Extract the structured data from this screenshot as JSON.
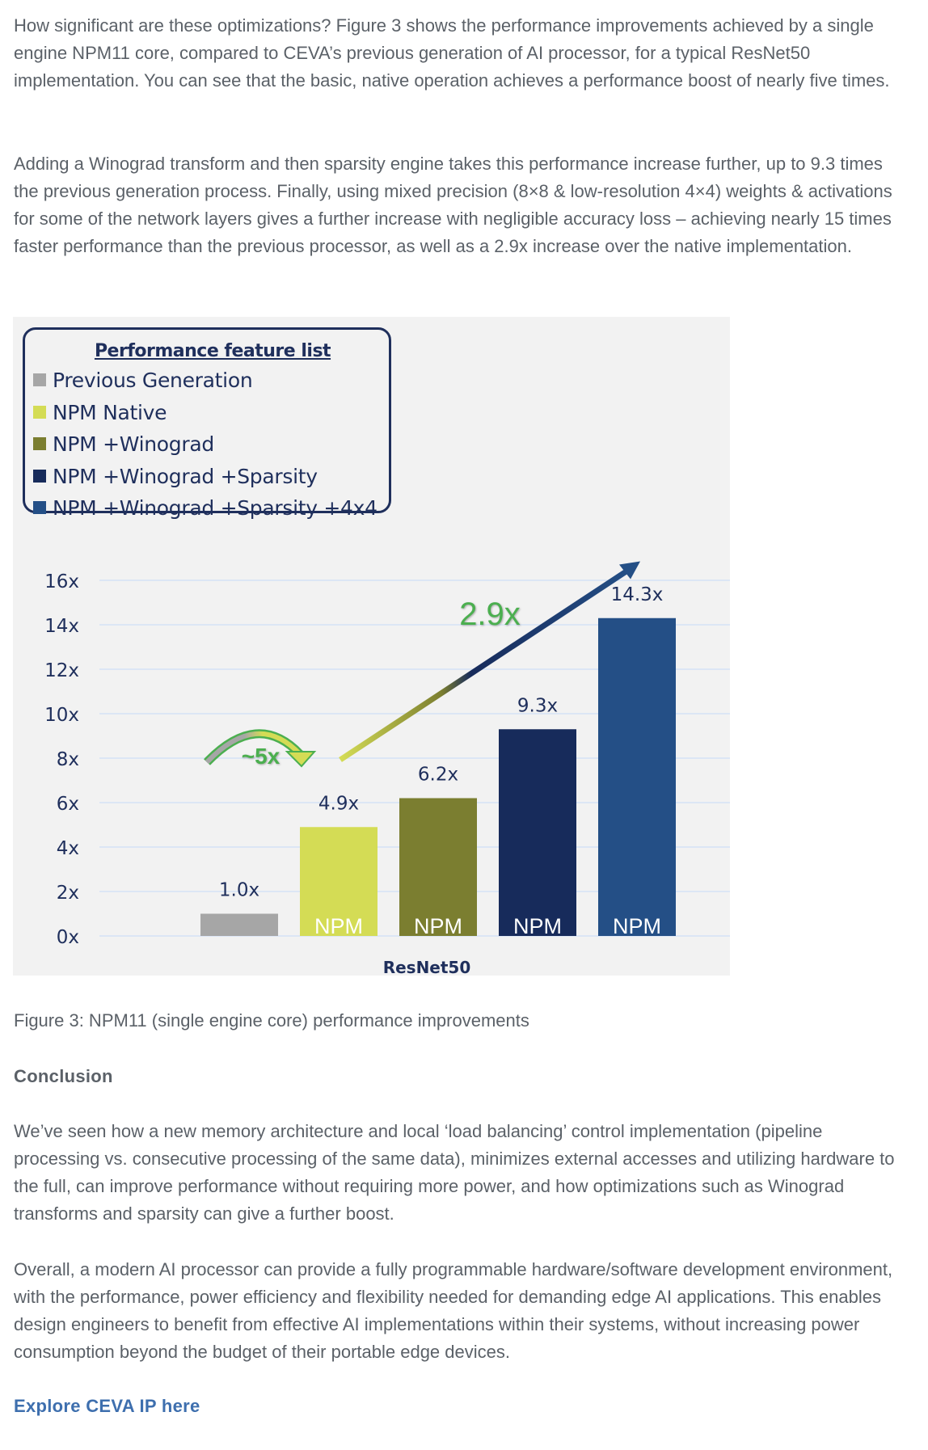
{
  "article": {
    "paragraph_1": "How significant are these optimizations? Figure 3 shows the performance improvements achieved by a single engine NPM11 core, compared to CEVA’s previous generation of AI processor, for a typical ResNet50 implementation. You can see that the basic, native operation achieves a performance boost of nearly five times.",
    "paragraph_2": "Adding a Winograd transform and then sparsity engine takes this performance increase further, up to 9.3 times the previous generation process. Finally, using mixed precision (8×8 & low-resolution 4×4) weights & activations for some of the network layers gives a further increase with negligible accuracy loss – achieving nearly 15 times faster performance than the previous processor, as well as a 2.9x increase over the native implementation.",
    "figure_caption": "Figure 3: NPM11 (single engine core) performance improvements",
    "conclusion_heading": "Conclusion",
    "paragraph_3": "We’ve seen how a new memory architecture and local ‘load balancing’ control implementation (pipeline processing vs. consecutive processing of the same data), minimizes external accesses and utilizing hardware to the full, can improve performance without requiring more power, and how optimizations such as Winograd transforms and sparsity can give a further boost.",
    "paragraph_4": "Overall, a modern AI processor can provide a fully programmable hardware/software development environment, with the performance, power efficiency and flexibility needed for demanding edge AI applications. This enables design engineers to benefit from effective AI implementations within their systems, without increasing power consumption beyond the budget of their portable edge devices.",
    "explore_link": "Explore CEVA IP here"
  },
  "colors": {
    "body_text": "#5b6168",
    "link": "#3e6fae",
    "chart_background": "#f2f2f2",
    "axis_text": "#1f2f5c",
    "gridline": "#dce6f5",
    "annotation_green": "#4caf50"
  },
  "chart_data": {
    "type": "bar",
    "title": "",
    "xlabel": "ResNet50",
    "ylabel": "",
    "ylim": [
      0,
      16
    ],
    "yticks": [
      0,
      2,
      4,
      6,
      8,
      10,
      12,
      14,
      16
    ],
    "ytick_labels": [
      "0x",
      "2x",
      "4x",
      "6x",
      "8x",
      "10x",
      "12x",
      "14x",
      "16x"
    ],
    "grid": true,
    "legend": {
      "title": "Performance feature list",
      "placement": "top-left",
      "entries": [
        {
          "label": "Previous Generation",
          "color": "#a6a6a6"
        },
        {
          "label": "NPM Native",
          "color": "#d4dc55"
        },
        {
          "label": "NPM +Winograd",
          "color": "#7b7e30"
        },
        {
          "label": "NPM +Winograd +Sparsity",
          "color": "#172b5b"
        },
        {
          "label": "NPM +Winograd +Sparsity +4x4",
          "color": "#244f86"
        }
      ]
    },
    "categories": [
      "ResNet50"
    ],
    "series": [
      {
        "name": "Previous Generation",
        "values": [
          1.0
        ],
        "data_label": "1.0x",
        "bar_label": "",
        "color": "#a6a6a6"
      },
      {
        "name": "NPM Native",
        "values": [
          4.9
        ],
        "data_label": "4.9x",
        "bar_label": "NPM",
        "color": "#d4dc55"
      },
      {
        "name": "NPM +Winograd",
        "values": [
          6.2
        ],
        "data_label": "6.2x",
        "bar_label": "NPM",
        "color": "#7b7e30"
      },
      {
        "name": "NPM +Winograd +Sparsity",
        "values": [
          9.3
        ],
        "data_label": "9.3x",
        "bar_label": "NPM",
        "color": "#172b5b"
      },
      {
        "name": "NPM +Winograd +Sparsity +4x4",
        "values": [
          14.3
        ],
        "data_label": "14.3x",
        "bar_label": "NPM",
        "color": "#244f86"
      }
    ],
    "annotations": [
      {
        "text": "~5x",
        "type": "curved-arrow",
        "from_series": "Previous Generation",
        "to_series": "NPM Native",
        "level": 8,
        "color": "#4caf50"
      },
      {
        "text": "2.9x",
        "type": "straight-arrow",
        "from_series": "NPM Native",
        "to_series": "NPM +Winograd +Sparsity +4x4",
        "start_level": 8,
        "end_level": 17,
        "color": "#4caf50"
      }
    ]
  }
}
